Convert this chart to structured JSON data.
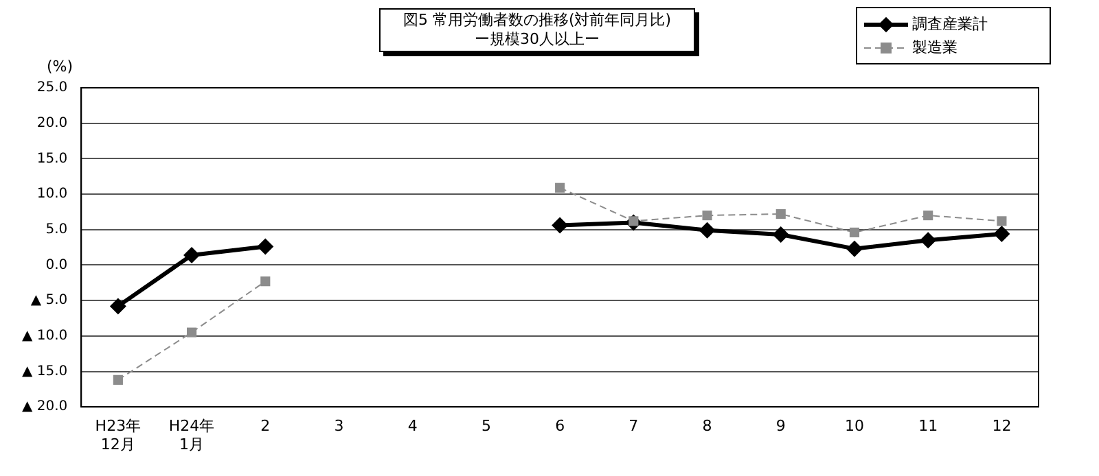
{
  "chart_data": {
    "type": "line",
    "title": "図5 常用労働者数の推移(対前年同月比)",
    "subtitle": "ー規模30人以上ー",
    "ylabel": "(%)",
    "categories": [
      "H23年\n12月",
      "H24年\n1月",
      "2",
      "3",
      "4",
      "5",
      "6",
      "7",
      "8",
      "9",
      "10",
      "11",
      "12"
    ],
    "series": [
      {
        "name": "調査産業計",
        "color": "#000000",
        "marker": "diamond",
        "line_style": "solid",
        "values": [
          -5.8,
          1.4,
          2.6,
          null,
          null,
          null,
          5.6,
          6.0,
          4.9,
          4.3,
          2.3,
          3.5,
          4.4
        ]
      },
      {
        "name": "製造業",
        "color": "#8c8c8c",
        "marker": "square",
        "line_style": "dashed",
        "values": [
          -16.2,
          -9.5,
          -2.3,
          null,
          null,
          null,
          10.9,
          6.2,
          7.0,
          7.2,
          4.6,
          7.0,
          6.2
        ]
      }
    ],
    "ylim": [
      -20,
      25
    ],
    "yticks": [
      {
        "value": -20,
        "label": "▲ 20.0"
      },
      {
        "value": -15,
        "label": "▲ 15.0"
      },
      {
        "value": -10,
        "label": "▲ 10.0"
      },
      {
        "value": -5,
        "label": "▲ 5.0"
      },
      {
        "value": 0,
        "label": "0.0"
      },
      {
        "value": 5,
        "label": "5.0"
      },
      {
        "value": 10,
        "label": "10.0"
      },
      {
        "value": 15,
        "label": "15.0"
      },
      {
        "value": 20,
        "label": "20.0"
      },
      {
        "value": 25,
        "label": "25.0"
      }
    ],
    "grid": "y",
    "legend": "top right"
  }
}
